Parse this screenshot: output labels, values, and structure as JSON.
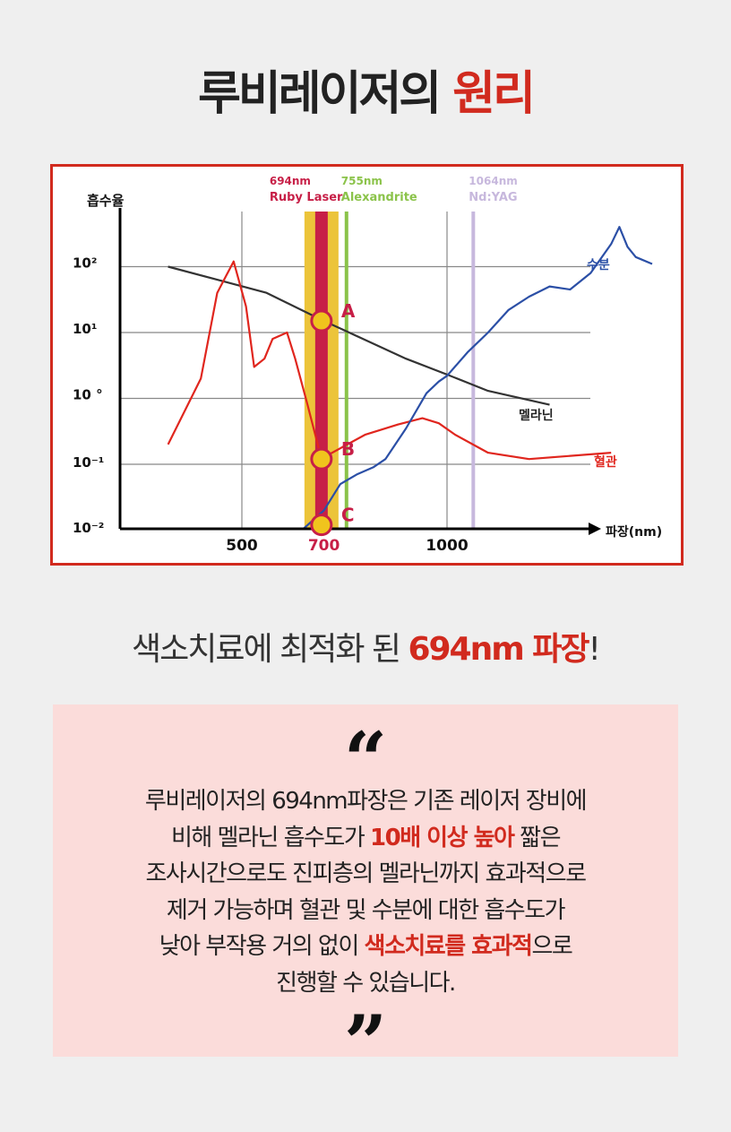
{
  "header": {
    "title_main": "루비레이저의 ",
    "title_accent": "원리"
  },
  "chart_data": {
    "type": "line",
    "ylabel": "흡수율",
    "xlabel": "파장(nm)",
    "yscale": "log",
    "x_ticks": [
      "500",
      "700",
      "1000"
    ],
    "y_ticks": [
      "10²",
      "10¹",
      "10 °",
      "10⁻¹",
      "10⁻²"
    ],
    "ylim": [
      0.01,
      300
    ],
    "series": [
      {
        "name": "멜라닌",
        "color": "#333333",
        "x": [
          320,
          560,
          700,
          900,
          1000,
          1100,
          1250
        ],
        "y": [
          100,
          40,
          15,
          4,
          2.3,
          1.3,
          0.8
        ]
      },
      {
        "name": "혈관",
        "color": "#e0261e",
        "x": [
          320,
          400,
          440,
          480,
          510,
          530,
          555,
          575,
          610,
          630,
          660,
          694,
          720,
          800,
          880,
          940,
          980,
          1020,
          1100,
          1200,
          1400
        ],
        "y": [
          0.2,
          2,
          40,
          120,
          25,
          3,
          4,
          8,
          10,
          4,
          0.8,
          0.12,
          0.15,
          0.28,
          0.4,
          0.5,
          0.42,
          0.28,
          0.15,
          0.12,
          0.15
        ]
      },
      {
        "name": "수분",
        "color": "#2b4fa6",
        "x": [
          650,
          700,
          740,
          780,
          820,
          850,
          900,
          950,
          980,
          1000,
          1050,
          1100,
          1150,
          1200,
          1250,
          1300,
          1350,
          1400,
          1420,
          1440,
          1460,
          1500
        ],
        "y": [
          0.009,
          0.02,
          0.05,
          0.07,
          0.09,
          0.12,
          0.35,
          1.2,
          1.8,
          2.2,
          5,
          10,
          22,
          35,
          50,
          45,
          80,
          220,
          400,
          200,
          140,
          110
        ]
      }
    ],
    "wavelength_lines": [
      {
        "x": 694,
        "label_top": "694nm",
        "label_bottom": "Ruby Laser",
        "color": "#c71f47",
        "band_color": "#ecc43a"
      },
      {
        "x": 755,
        "label_top": "755nm",
        "label_bottom": "Alexandrite",
        "color": "#8bc34a"
      },
      {
        "x": 1064,
        "label_top": "1064nm",
        "label_bottom": "Nd:YAG",
        "color": "#c7b8dd"
      }
    ],
    "markers": [
      {
        "label": "A",
        "x": 694,
        "y": 15
      },
      {
        "label": "B",
        "x": 694,
        "y": 0.12
      },
      {
        "label": "C",
        "x": 694,
        "y": 0.012
      }
    ]
  },
  "subtitle": {
    "main": "색소치료에 최적화 된 ",
    "accent": "694nm 파장",
    "end": "!"
  },
  "quote": {
    "open_mark": "“",
    "close_mark": "”",
    "line1": "루비레이저의 694nm파장은 기존 레이저 장비에",
    "line2_a": "비해 멜라닌 흡수도가 ",
    "line2_hl": "10배 이상 높아",
    "line2_b": " 짧은",
    "line3": "조사시간으로도 진피층의 멜라닌까지 효과적으로",
    "line4": "제거 가능하며 혈관 및 수분에 대한 흡수도가",
    "line5_a": "낮아 부작용 거의 없이 ",
    "line5_hl": "색소치료를 효과적",
    "line5_b": "으로",
    "line6": "진행할 수 있습니다."
  }
}
